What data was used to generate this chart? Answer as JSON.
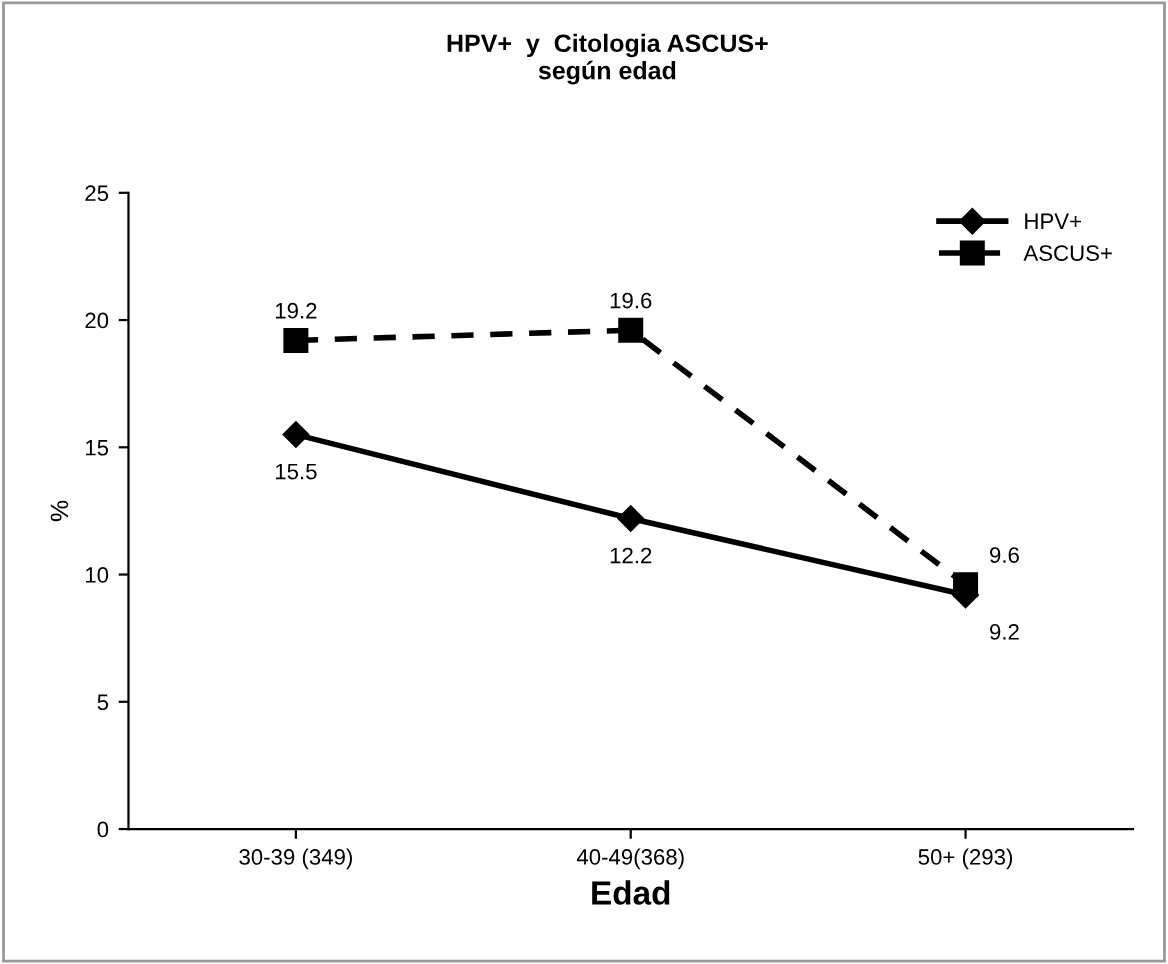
{
  "chart_data": {
    "type": "line",
    "title": "HPV+  y  Citologia ASCUS+\nsegún edad",
    "xlabel": "Edad",
    "ylabel": "%",
    "categories": [
      "30-39 (349)",
      "40-49(368)",
      "50+ (293)"
    ],
    "series": [
      {
        "name": "HPV+",
        "color": "#000000",
        "values": [
          15.5,
          12.2,
          9.2
        ],
        "marker": "diamond",
        "line_style": "solid"
      },
      {
        "name": "ASCUS+",
        "color": "#000000",
        "values": [
          19.2,
          19.6,
          9.6
        ],
        "marker": "square",
        "line_style": "dashed"
      }
    ],
    "ylim": [
      0,
      25
    ],
    "yticks": [
      0,
      5,
      10,
      15,
      20,
      25
    ],
    "grid": false,
    "legend": "top right",
    "data_labels": true
  }
}
